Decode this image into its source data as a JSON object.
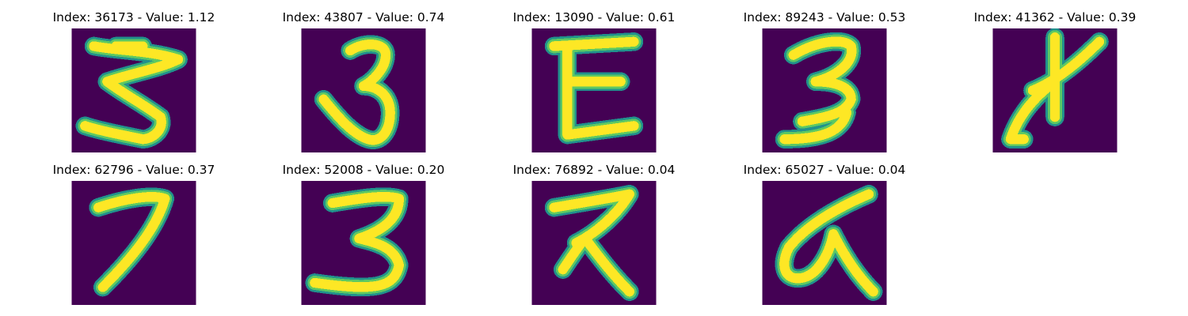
{
  "colors": {
    "background": "#440154",
    "stroke_outer": "#21918c",
    "stroke_mid": "#5ec962",
    "stroke_core": "#fde725"
  },
  "panels": [
    {
      "title": "Index: 36173 - Value: 1.12",
      "index": 36173,
      "value": 1.12
    },
    {
      "title": "Index: 43807 - Value: 0.74",
      "index": 43807,
      "value": 0.74
    },
    {
      "title": "Index: 13090 - Value: 0.61",
      "index": 13090,
      "value": 0.61
    },
    {
      "title": "Index: 89243 - Value: 0.53",
      "index": 89243,
      "value": 0.53
    },
    {
      "title": "Index: 41362 - Value: 0.39",
      "index": 41362,
      "value": 0.39
    },
    {
      "title": "Index: 62796 - Value: 0.37",
      "index": 62796,
      "value": 0.37
    },
    {
      "title": "Index: 52008 - Value: 0.20",
      "index": 52008,
      "value": 0.2
    },
    {
      "title": "Index: 76892 - Value: 0.04",
      "index": 76892,
      "value": 0.04
    },
    {
      "title": "Index: 65027 - Value: 0.04",
      "index": 65027,
      "value": 0.04
    }
  ]
}
